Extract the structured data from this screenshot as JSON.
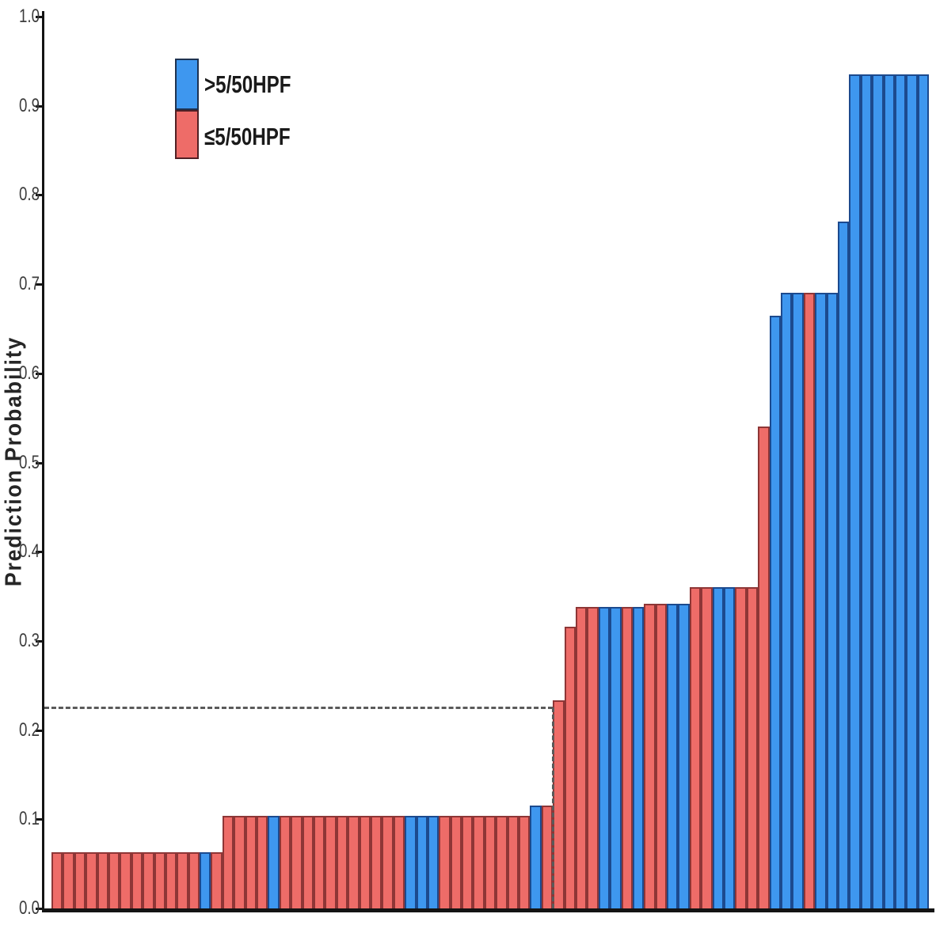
{
  "figure": {
    "ylabel": "Prediction Probability",
    "background": "#ffffff",
    "axis_color": "#141414"
  },
  "legend": {
    "items": [
      {
        "label": ">5/50HPF",
        "key": "gt",
        "color": "#3E97EF"
      },
      {
        "label": "≤5/50HPF",
        "key": "le",
        "color": "#EE6C68"
      }
    ],
    "position": "upper-left"
  },
  "chart_data": {
    "type": "bar",
    "title": "",
    "xlabel": "",
    "ylabel": "Prediction Probability",
    "ylim": [
      0.0,
      1.0
    ],
    "grid": false,
    "legend_position": "upper-left",
    "ytick_labels": [
      "1.0",
      "0.9",
      "0.8",
      "0.7",
      "0.6",
      "0.5",
      "0.4",
      "0.3",
      "0.2",
      "0.1",
      "0.0"
    ],
    "threshold": 0.225,
    "threshold_style": "dashed",
    "threshold_bar_index": 44,
    "series_colors": {
      "gt": "#3E97EF",
      "le": "#EE6C68"
    },
    "series_edge_colors": {
      "gt": "#1c4a8e",
      "le": "#8e3636"
    },
    "series_names": {
      "gt": ">5/50HPF",
      "le": "≤5/50HPF"
    },
    "values": [
      0.063,
      0.063,
      0.063,
      0.063,
      0.063,
      0.063,
      0.063,
      0.063,
      0.063,
      0.063,
      0.063,
      0.063,
      0.063,
      0.063,
      0.063,
      0.104,
      0.104,
      0.104,
      0.104,
      0.104,
      0.104,
      0.104,
      0.104,
      0.104,
      0.104,
      0.104,
      0.104,
      0.104,
      0.104,
      0.104,
      0.104,
      0.104,
      0.104,
      0.104,
      0.104,
      0.104,
      0.104,
      0.104,
      0.104,
      0.104,
      0.104,
      0.104,
      0.115,
      0.115,
      0.233,
      0.316,
      0.338,
      0.338,
      0.338,
      0.338,
      0.338,
      0.338,
      0.342,
      0.342,
      0.342,
      0.342,
      0.36,
      0.36,
      0.36,
      0.36,
      0.36,
      0.36,
      0.54,
      0.665,
      0.69,
      0.69,
      0.69,
      0.69,
      0.69,
      0.77,
      0.935,
      0.935,
      0.935,
      0.935,
      0.935,
      0.935,
      0.935
    ],
    "groups": [
      "le",
      "le",
      "le",
      "le",
      "le",
      "le",
      "le",
      "le",
      "le",
      "le",
      "le",
      "le",
      "le",
      "gt",
      "le",
      "le",
      "le",
      "le",
      "le",
      "gt",
      "le",
      "le",
      "le",
      "le",
      "le",
      "le",
      "le",
      "le",
      "le",
      "le",
      "le",
      "gt",
      "gt",
      "gt",
      "le",
      "le",
      "le",
      "le",
      "le",
      "le",
      "le",
      "le",
      "gt",
      "le",
      "le",
      "le",
      "le",
      "le",
      "gt",
      "gt",
      "le",
      "gt",
      "le",
      "le",
      "gt",
      "gt",
      "le",
      "le",
      "gt",
      "gt",
      "le",
      "le",
      "le",
      "gt",
      "gt",
      "gt",
      "le",
      "gt",
      "gt",
      "gt",
      "gt",
      "gt",
      "gt",
      "gt",
      "gt",
      "gt",
      "gt"
    ]
  }
}
